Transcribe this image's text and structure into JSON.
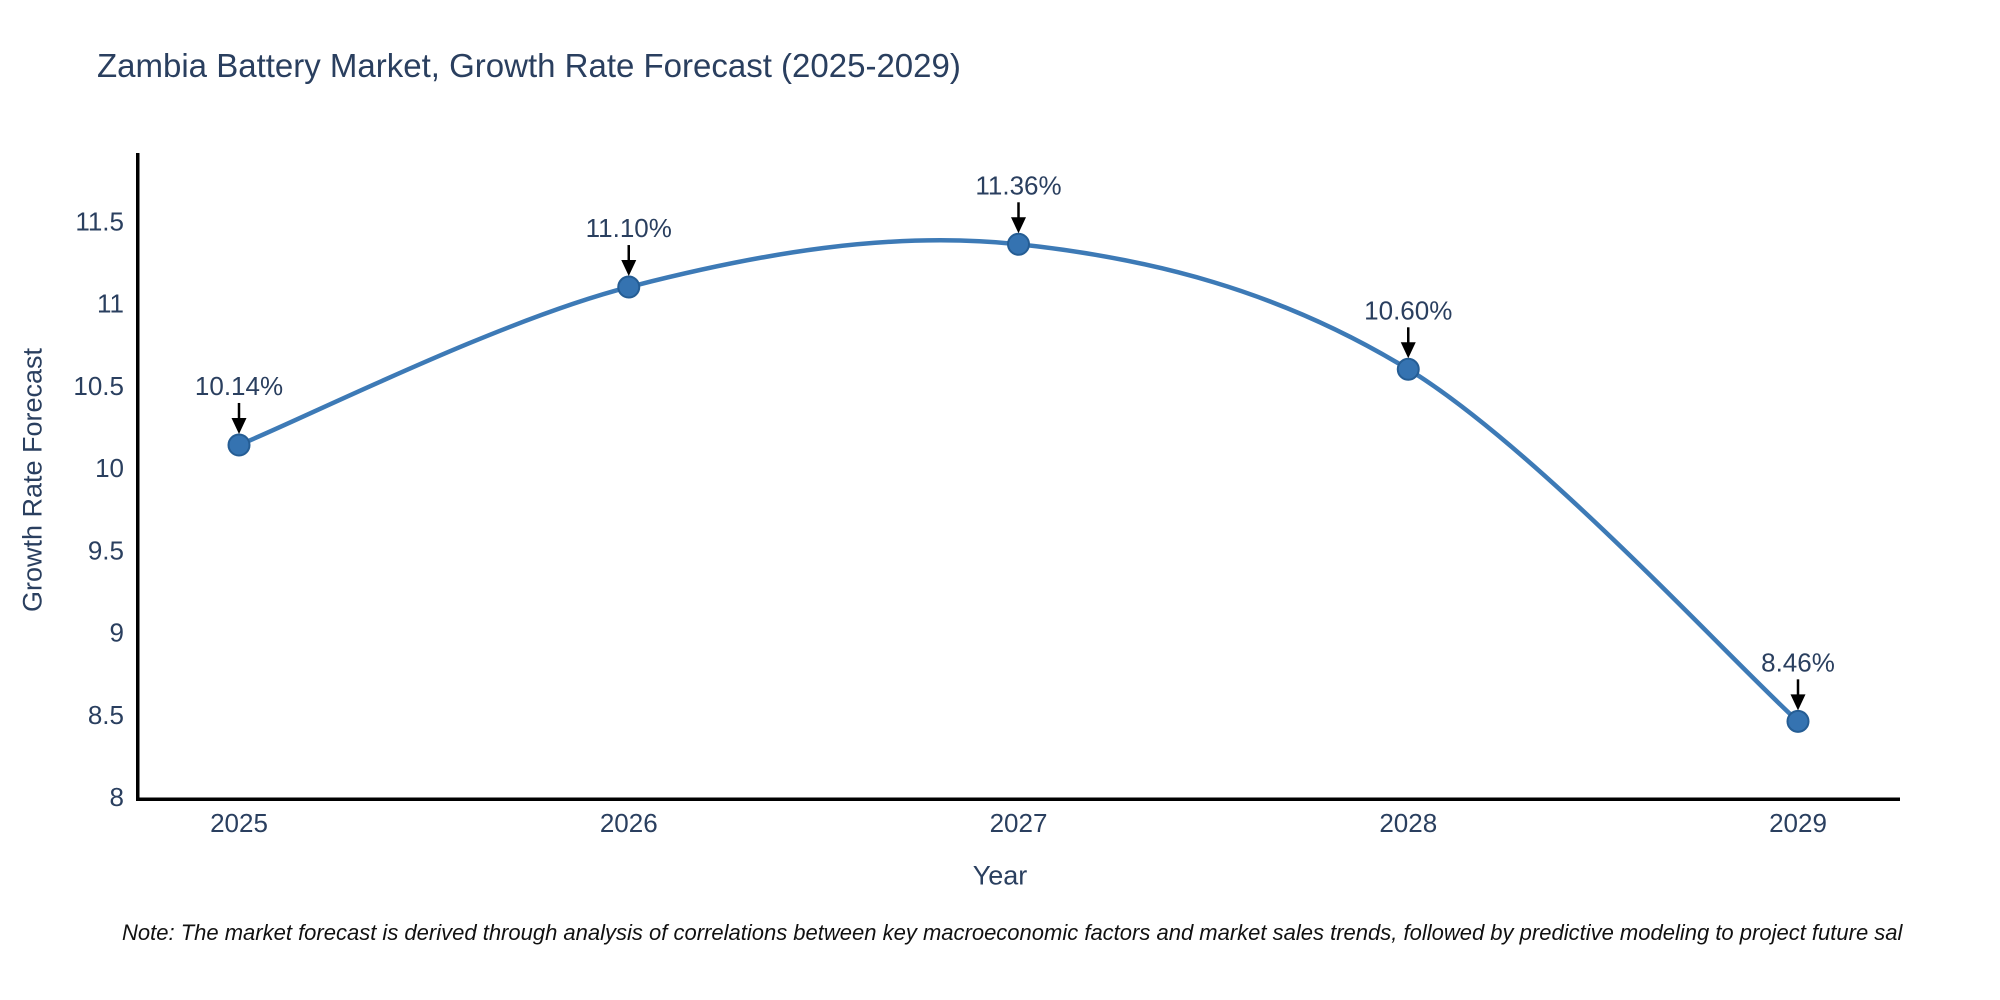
{
  "title": "Zambia Battery Market, Growth Rate Forecast (2025-2029)",
  "note": "Note: The market forecast is derived through analysis of correlations between key macroeconomic factors and market sales trends, followed by predictive modeling to project future sal",
  "chart_data": {
    "type": "line",
    "line_shape": "spline",
    "title": "Zambia Battery Market, Growth Rate Forecast (2025-2029)",
    "xlabel": "Year",
    "ylabel": "Growth Rate Forecast",
    "x": [
      2025,
      2026,
      2027,
      2028,
      2029
    ],
    "values": [
      10.14,
      11.1,
      11.36,
      10.6,
      8.46
    ],
    "annotations": [
      "10.14%",
      "11.10%",
      "11.36%",
      "10.60%",
      "8.46%"
    ],
    "yticks": [
      8,
      8.5,
      9,
      9.5,
      10,
      10.5,
      11,
      11.5
    ],
    "ylim": [
      8,
      11.9
    ],
    "grid": false,
    "legend": false,
    "markers": true,
    "annotation_arrows": "down-arrow from label to point",
    "colors": {
      "line": "#3d7ab6",
      "marker_fill": "#3573b1",
      "marker_edge": "#255d94",
      "axis": "#000000",
      "text": "#2a3f5f",
      "arrow": "#000000",
      "background": "#ffffff"
    }
  }
}
